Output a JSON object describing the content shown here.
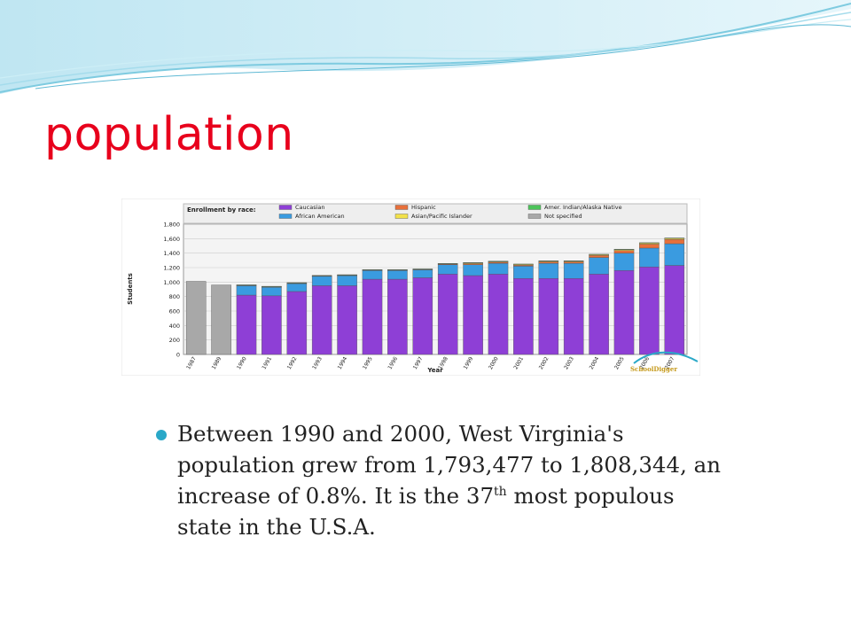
{
  "slide": {
    "title": "population",
    "bullet": {
      "text_part1": "Between 1990 and 2000, West Virginia's population grew from 1,793,477 to 1,808,344, an increase of 0.8%. It is the 37",
      "sup": "th",
      "text_part2": " most populous state in the U.S.A."
    }
  },
  "colors": {
    "title": "#e8001c",
    "bullet": "#2aa8c8",
    "caucasian": "#8e3fd6",
    "african_american": "#3a9be0",
    "hispanic": "#e8703a",
    "asian": "#f2e14a",
    "amer_indian": "#4cc45a",
    "not_specified": "#a8a8a8"
  },
  "chart_data": {
    "type": "bar",
    "stacked": true,
    "legend_title": "Enrollment by race:",
    "watermark": "SchoolDigger",
    "xlabel": "Year",
    "ylabel": "Students",
    "ylim": [
      0,
      1800
    ],
    "yticks": [
      "0",
      "200",
      "400",
      "600",
      "800",
      "1,000",
      "1,200",
      "1,400",
      "1,600",
      "1,800"
    ],
    "categories": [
      "1987",
      "1989",
      "1990",
      "1991",
      "1992",
      "1993",
      "1994",
      "1995",
      "1996",
      "1997",
      "1998",
      "1999",
      "2000",
      "2001",
      "2002",
      "2003",
      "2004",
      "2005",
      "2006",
      "2007"
    ],
    "series": [
      {
        "name": "Caucasian",
        "color": "#8e3fd6",
        "values": [
          0,
          0,
          820,
          810,
          870,
          950,
          950,
          1040,
          1040,
          1060,
          1110,
          1090,
          1110,
          1050,
          1050,
          1050,
          1110,
          1160,
          1210,
          1230
        ]
      },
      {
        "name": "African American",
        "color": "#3a9be0",
        "values": [
          0,
          0,
          130,
          120,
          110,
          130,
          140,
          120,
          120,
          110,
          130,
          150,
          150,
          170,
          210,
          210,
          230,
          240,
          260,
          300
        ]
      },
      {
        "name": "Hispanic",
        "color": "#e8703a",
        "values": [
          0,
          0,
          5,
          5,
          5,
          5,
          5,
          5,
          5,
          5,
          10,
          15,
          15,
          15,
          20,
          20,
          30,
          35,
          55,
          60
        ]
      },
      {
        "name": "Asian/Pacific Islander",
        "color": "#f2e14a",
        "values": [
          0,
          0,
          5,
          5,
          5,
          5,
          5,
          5,
          5,
          5,
          5,
          10,
          10,
          10,
          10,
          10,
          10,
          15,
          15,
          15
        ]
      },
      {
        "name": "Amer. Indian/Alaska Native",
        "color": "#4cc45a",
        "values": [
          0,
          0,
          2,
          2,
          2,
          2,
          2,
          2,
          2,
          2,
          2,
          5,
          5,
          5,
          5,
          5,
          5,
          5,
          5,
          5
        ]
      },
      {
        "name": "Not specified",
        "color": "#a8a8a8",
        "values": [
          1010,
          960,
          0,
          0,
          0,
          0,
          0,
          0,
          0,
          0,
          0,
          0,
          0,
          0,
          0,
          0,
          0,
          0,
          0,
          0
        ]
      }
    ]
  }
}
